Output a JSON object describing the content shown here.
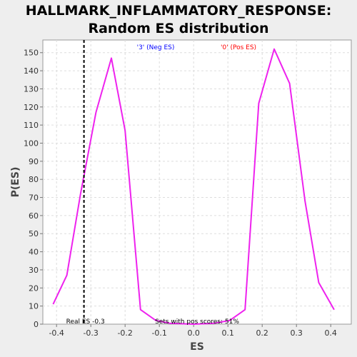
{
  "chart_data": {
    "type": "line",
    "title_line1": "HALLMARK_INFLAMMATORY_RESPONSE:",
    "title_line2": "Random ES distribution",
    "xlabel": "ES",
    "ylabel": "P(ES)",
    "xlim": [
      -0.44,
      0.46
    ],
    "ylim": [
      0,
      157
    ],
    "xticks": [
      -0.4,
      -0.3,
      -0.2,
      -0.1,
      0.0,
      0.1,
      0.2,
      0.3,
      0.4
    ],
    "xtick_labels": [
      "-0.4",
      "-0.3",
      "-0.2",
      "-0.1",
      "0.0",
      "0.1",
      "0.2",
      "0.3",
      "0.4"
    ],
    "yticks": [
      0,
      10,
      20,
      30,
      40,
      50,
      60,
      70,
      80,
      90,
      100,
      110,
      120,
      130,
      140,
      150
    ],
    "grid": true,
    "series": [
      {
        "color": "#ee22ee",
        "x": [
          -0.41,
          -0.37,
          -0.33,
          -0.285,
          -0.24,
          -0.2,
          -0.155,
          -0.11,
          -0.07,
          0.0,
          0.06,
          0.105,
          0.15,
          0.19,
          0.235,
          0.28,
          0.325,
          0.365,
          0.41
        ],
        "y": [
          11,
          27,
          72,
          117,
          147,
          107,
          8,
          2,
          0.5,
          0,
          0.5,
          2,
          8,
          122,
          152,
          133,
          68,
          23,
          8
        ]
      }
    ],
    "vline": {
      "x": -0.32,
      "label": "Real ES -0.3"
    },
    "annotations": {
      "neg": {
        "text": "'3' (Neg ES)",
        "color": "#0000ff"
      },
      "pos": {
        "text": "'0' (Pos ES)",
        "color": "#ff0000"
      },
      "pos_scores": {
        "text": "Sets with pos scores: 51%",
        "color": "#000000"
      }
    }
  }
}
